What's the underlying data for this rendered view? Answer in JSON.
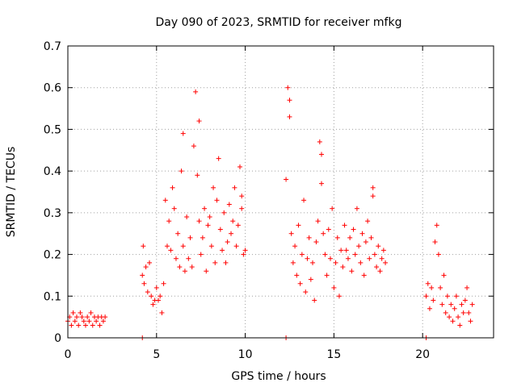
{
  "chart_data": {
    "type": "scatter",
    "title": "Day 090 of 2023, SRMTID for receiver mfkg",
    "xlabel": "GPS time / hours",
    "ylabel": "SRMTID / TECUs",
    "xlim": [
      0,
      24
    ],
    "ylim": [
      0,
      0.7
    ],
    "xticks": [
      0,
      5,
      10,
      15,
      20
    ],
    "yticks": [
      0,
      0.1,
      0.2,
      0.3,
      0.4,
      0.5,
      0.6,
      0.7
    ],
    "xtick_labels": [
      "0",
      "5",
      "10",
      "15",
      "20"
    ],
    "ytick_labels": [
      "0",
      "0.1",
      "0.2",
      "0.3",
      "0.4",
      "0.5",
      "0.6",
      "0.7"
    ],
    "grid": true,
    "marker": "+",
    "color": "#ff0000",
    "series": [
      {
        "name": "SRMTID",
        "x": [
          0.0,
          0.1,
          0.2,
          0.3,
          0.4,
          0.5,
          0.6,
          0.7,
          0.8,
          0.9,
          1.0,
          1.1,
          1.2,
          1.3,
          1.4,
          1.5,
          1.6,
          1.7,
          1.8,
          1.9,
          2.0,
          2.1,
          4.2,
          4.25,
          4.3,
          4.4,
          4.5,
          4.6,
          4.7,
          4.8,
          4.9,
          5.0,
          5.1,
          5.2,
          5.3,
          5.4,
          5.5,
          5.6,
          5.7,
          5.8,
          5.9,
          6.0,
          6.1,
          6.2,
          6.3,
          6.4,
          6.5,
          6.6,
          6.7,
          6.8,
          6.9,
          7.0,
          7.1,
          7.2,
          7.3,
          7.4,
          7.5,
          7.6,
          7.7,
          7.8,
          7.9,
          8.0,
          8.1,
          8.2,
          8.3,
          8.4,
          8.5,
          8.6,
          8.7,
          8.8,
          8.9,
          9.0,
          9.1,
          9.2,
          9.3,
          9.4,
          9.5,
          9.6,
          9.7,
          9.8,
          9.9,
          10.0,
          12.3,
          12.4,
          12.5,
          12.6,
          12.7,
          12.8,
          12.9,
          13.0,
          13.1,
          13.2,
          13.3,
          13.4,
          13.5,
          13.6,
          13.7,
          13.8,
          13.9,
          14.0,
          14.1,
          14.2,
          14.3,
          14.4,
          14.5,
          14.6,
          14.7,
          14.8,
          14.9,
          15.0,
          15.1,
          15.2,
          15.3,
          15.4,
          15.5,
          15.6,
          15.7,
          15.8,
          15.9,
          16.0,
          16.1,
          16.2,
          16.3,
          16.4,
          16.5,
          16.6,
          16.7,
          16.8,
          16.9,
          17.0,
          17.1,
          17.2,
          17.3,
          17.4,
          17.5,
          17.6,
          17.7,
          17.8,
          17.9,
          20.2,
          20.3,
          20.4,
          20.5,
          20.6,
          20.7,
          20.8,
          20.9,
          21.0,
          21.1,
          21.2,
          21.3,
          21.4,
          21.5,
          21.6,
          21.7,
          21.8,
          21.9,
          22.0,
          22.1,
          22.2,
          22.3,
          22.4,
          22.5,
          22.6,
          22.7,
          22.8,
          4.2,
          12.3,
          20.2,
          7.4,
          12.5,
          14.3,
          17.2,
          6.5,
          9.8
        ],
        "y": [
          0.04,
          0.05,
          0.03,
          0.06,
          0.04,
          0.05,
          0.03,
          0.06,
          0.05,
          0.04,
          0.03,
          0.05,
          0.04,
          0.06,
          0.03,
          0.05,
          0.04,
          0.05,
          0.03,
          0.05,
          0.04,
          0.05,
          0.15,
          0.22,
          0.13,
          0.17,
          0.11,
          0.18,
          0.1,
          0.08,
          0.09,
          0.12,
          0.09,
          0.1,
          0.06,
          0.13,
          0.33,
          0.22,
          0.28,
          0.21,
          0.36,
          0.31,
          0.19,
          0.25,
          0.17,
          0.4,
          0.22,
          0.16,
          0.29,
          0.19,
          0.24,
          0.17,
          0.46,
          0.59,
          0.39,
          0.28,
          0.2,
          0.24,
          0.31,
          0.16,
          0.27,
          0.29,
          0.22,
          0.36,
          0.18,
          0.33,
          0.43,
          0.26,
          0.21,
          0.3,
          0.18,
          0.23,
          0.32,
          0.25,
          0.28,
          0.36,
          0.22,
          0.27,
          0.41,
          0.31,
          0.2,
          0.21,
          0.38,
          0.6,
          0.57,
          0.25,
          0.18,
          0.22,
          0.15,
          0.27,
          0.13,
          0.2,
          0.33,
          0.11,
          0.19,
          0.24,
          0.14,
          0.18,
          0.09,
          0.23,
          0.28,
          0.47,
          0.37,
          0.25,
          0.2,
          0.15,
          0.26,
          0.19,
          0.31,
          0.12,
          0.18,
          0.24,
          0.1,
          0.21,
          0.17,
          0.27,
          0.21,
          0.19,
          0.24,
          0.16,
          0.26,
          0.2,
          0.31,
          0.22,
          0.18,
          0.25,
          0.15,
          0.23,
          0.28,
          0.19,
          0.24,
          0.34,
          0.2,
          0.17,
          0.22,
          0.16,
          0.19,
          0.21,
          0.18,
          0.1,
          0.13,
          0.07,
          0.12,
          0.09,
          0.23,
          0.27,
          0.2,
          0.12,
          0.08,
          0.15,
          0.06,
          0.1,
          0.05,
          0.08,
          0.04,
          0.07,
          0.1,
          0.05,
          0.03,
          0.08,
          0.06,
          0.09,
          0.12,
          0.06,
          0.04,
          0.08,
          0.0,
          0.0,
          0.0,
          0.52,
          0.53,
          0.44,
          0.36,
          0.49,
          0.34
        ]
      }
    ]
  }
}
